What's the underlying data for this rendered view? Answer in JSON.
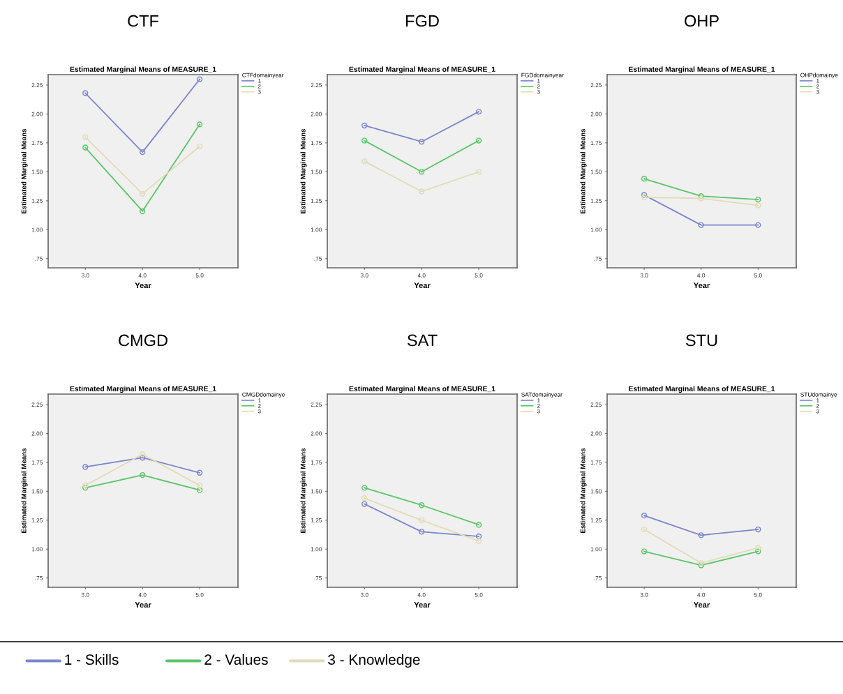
{
  "chart_data": [
    {
      "type": "line",
      "title": "CTF",
      "subtitle": "Estimated Marginal Means of MEASURE_1",
      "xlabel": "Year",
      "ylabel": "Estimated Marginal Means",
      "legend_title": "CTFdomainyear",
      "x": [
        3,
        4,
        5
      ],
      "xlim": [
        2.35,
        5.67
      ],
      "xticks": [
        {
          "value": 3,
          "label": "3.0"
        },
        {
          "value": 4,
          "label": "4.0"
        },
        {
          "value": 5,
          "label": "5.0"
        }
      ],
      "ylim": [
        0.67,
        2.34
      ],
      "yticks": [
        {
          "value": 0.75,
          "label": ".75"
        },
        {
          "value": 1,
          "label": "1.00"
        },
        {
          "value": 1.25,
          "label": "1.25"
        },
        {
          "value": 1.5,
          "label": "1.50"
        },
        {
          "value": 1.75,
          "label": "1.75"
        },
        {
          "value": 2,
          "label": "2.00"
        },
        {
          "value": 2.25,
          "label": "2.25"
        }
      ],
      "marker": "circle",
      "legend": "top right",
      "grid": false,
      "series": [
        {
          "name": "1",
          "color": "#7b86cc",
          "values": [
            2.18,
            1.67,
            2.3
          ]
        },
        {
          "name": "2",
          "color": "#5cc46a",
          "values": [
            1.71,
            1.16,
            1.91
          ]
        },
        {
          "name": "3",
          "color": "#e0dcb8",
          "values": [
            1.8,
            1.31,
            1.72
          ]
        }
      ]
    },
    {
      "type": "line",
      "title": "FGD",
      "subtitle": "Estimated Marginal Means of MEASURE_1",
      "xlabel": "Year",
      "ylabel": "Estimated Marginal Means",
      "legend_title": "FGDdomainyear",
      "x": [
        3,
        4,
        5
      ],
      "xlim": [
        2.35,
        5.67
      ],
      "xticks": [
        {
          "value": 3,
          "label": "3.0"
        },
        {
          "value": 4,
          "label": "4.0"
        },
        {
          "value": 5,
          "label": "5.0"
        }
      ],
      "ylim": [
        0.67,
        2.34
      ],
      "yticks": [
        {
          "value": 0.75,
          "label": ".75"
        },
        {
          "value": 1,
          "label": "1.00"
        },
        {
          "value": 1.25,
          "label": "1.25"
        },
        {
          "value": 1.5,
          "label": "1.50"
        },
        {
          "value": 1.75,
          "label": "1.75"
        },
        {
          "value": 2,
          "label": "2.00"
        },
        {
          "value": 2.25,
          "label": "2.25"
        }
      ],
      "marker": "circle",
      "legend": "top right",
      "grid": false,
      "series": [
        {
          "name": "1",
          "color": "#7b86cc",
          "values": [
            1.9,
            1.76,
            2.02
          ]
        },
        {
          "name": "2",
          "color": "#5cc46a",
          "values": [
            1.77,
            1.5,
            1.77
          ]
        },
        {
          "name": "3",
          "color": "#e0dcb8",
          "values": [
            1.59,
            1.33,
            1.5
          ]
        }
      ]
    },
    {
      "type": "line",
      "title": "OHP",
      "subtitle": "Estimated Marginal Means of MEASURE_1",
      "xlabel": "Year",
      "ylabel": "Estimated Marginal Means",
      "legend_title": "OHPdomainye",
      "x": [
        3,
        4,
        5
      ],
      "xlim": [
        2.35,
        5.67
      ],
      "xticks": [
        {
          "value": 3,
          "label": "3.0"
        },
        {
          "value": 4,
          "label": "4.0"
        },
        {
          "value": 5,
          "label": "5.0"
        }
      ],
      "ylim": [
        0.67,
        2.34
      ],
      "yticks": [
        {
          "value": 0.75,
          "label": ".75"
        },
        {
          "value": 1,
          "label": "1.00"
        },
        {
          "value": 1.25,
          "label": "1.25"
        },
        {
          "value": 1.5,
          "label": "1.50"
        },
        {
          "value": 1.75,
          "label": "1.75"
        },
        {
          "value": 2,
          "label": "2.00"
        },
        {
          "value": 2.25,
          "label": "2.25"
        }
      ],
      "marker": "circle",
      "legend": "top right",
      "grid": false,
      "series": [
        {
          "name": "1",
          "color": "#7b86cc",
          "values": [
            1.3,
            1.04,
            1.04
          ]
        },
        {
          "name": "2",
          "color": "#5cc46a",
          "values": [
            1.44,
            1.29,
            1.26
          ]
        },
        {
          "name": "3",
          "color": "#e0dcb8",
          "values": [
            1.28,
            1.27,
            1.21
          ]
        }
      ]
    },
    {
      "type": "line",
      "title": "CMGD",
      "subtitle": "Estimated Marginal Means of MEASURE_1",
      "xlabel": "Year",
      "ylabel": "Estimated Marginal Means",
      "legend_title": "CMGDdomainye",
      "x": [
        3,
        4,
        5
      ],
      "xlim": [
        2.35,
        5.67
      ],
      "xticks": [
        {
          "value": 3,
          "label": "3.0"
        },
        {
          "value": 4,
          "label": "4.0"
        },
        {
          "value": 5,
          "label": "5.0"
        }
      ],
      "ylim": [
        0.67,
        2.34
      ],
      "yticks": [
        {
          "value": 0.75,
          "label": ".75"
        },
        {
          "value": 1,
          "label": "1.00"
        },
        {
          "value": 1.25,
          "label": "1.25"
        },
        {
          "value": 1.5,
          "label": "1.50"
        },
        {
          "value": 1.75,
          "label": "1.75"
        },
        {
          "value": 2,
          "label": "2.00"
        },
        {
          "value": 2.25,
          "label": "2.25"
        }
      ],
      "marker": "circle",
      "legend": "top right",
      "grid": false,
      "series": [
        {
          "name": "1",
          "color": "#7b86cc",
          "values": [
            1.71,
            1.79,
            1.66
          ]
        },
        {
          "name": "2",
          "color": "#5cc46a",
          "values": [
            1.53,
            1.64,
            1.51
          ]
        },
        {
          "name": "3",
          "color": "#e0dcb8",
          "values": [
            1.55,
            1.82,
            1.55
          ]
        }
      ]
    },
    {
      "type": "line",
      "title": "SAT",
      "subtitle": "Estimated Marginal Means of MEASURE_1",
      "xlabel": "Year",
      "ylabel": "Estimated Marginal Means",
      "legend_title": "SATdomainyear",
      "x": [
        3,
        4,
        5
      ],
      "xlim": [
        2.35,
        5.67
      ],
      "xticks": [
        {
          "value": 3,
          "label": "3.0"
        },
        {
          "value": 4,
          "label": "4.0"
        },
        {
          "value": 5,
          "label": "5.0"
        }
      ],
      "ylim": [
        0.67,
        2.34
      ],
      "yticks": [
        {
          "value": 0.75,
          "label": ".75"
        },
        {
          "value": 1,
          "label": "1.00"
        },
        {
          "value": 1.25,
          "label": "1.25"
        },
        {
          "value": 1.5,
          "label": "1.50"
        },
        {
          "value": 1.75,
          "label": "1.75"
        },
        {
          "value": 2,
          "label": "2.00"
        },
        {
          "value": 2.25,
          "label": "2.25"
        }
      ],
      "marker": "circle",
      "legend": "top right",
      "grid": false,
      "series": [
        {
          "name": "1",
          "color": "#7b86cc",
          "values": [
            1.39,
            1.15,
            1.11
          ]
        },
        {
          "name": "2",
          "color": "#5cc46a",
          "values": [
            1.53,
            1.38,
            1.21
          ]
        },
        {
          "name": "3",
          "color": "#e0dcb8",
          "values": [
            1.44,
            1.25,
            1.07
          ]
        }
      ]
    },
    {
      "type": "line",
      "title": "STU",
      "subtitle": "Estimated Marginal Means of MEASURE_1",
      "xlabel": "Year",
      "ylabel": "Estimated Marginal Means",
      "legend_title": "STUdomainye",
      "x": [
        3,
        4,
        5
      ],
      "xlim": [
        2.35,
        5.67
      ],
      "xticks": [
        {
          "value": 3,
          "label": "3.0"
        },
        {
          "value": 4,
          "label": "4.0"
        },
        {
          "value": 5,
          "label": "5.0"
        }
      ],
      "ylim": [
        0.67,
        2.34
      ],
      "yticks": [
        {
          "value": 0.75,
          "label": ".75"
        },
        {
          "value": 1,
          "label": "1.00"
        },
        {
          "value": 1.25,
          "label": "1.25"
        },
        {
          "value": 1.5,
          "label": "1.50"
        },
        {
          "value": 1.75,
          "label": "1.75"
        },
        {
          "value": 2,
          "label": "2.00"
        },
        {
          "value": 2.25,
          "label": "2.25"
        }
      ],
      "marker": "circle",
      "legend": "top right",
      "grid": false,
      "series": [
        {
          "name": "1",
          "color": "#7b86cc",
          "values": [
            1.29,
            1.12,
            1.17
          ]
        },
        {
          "name": "2",
          "color": "#5cc46a",
          "values": [
            0.98,
            0.86,
            0.98
          ]
        },
        {
          "name": "3",
          "color": "#e0dcb8",
          "values": [
            1.17,
            0.88,
            1.01
          ]
        }
      ]
    },
    {
      "type": "other",
      "annotations": [
        "1 - Skills",
        "2 - Values",
        "3 - Knowledge"
      ],
      "colors": [
        "#7b86cc",
        "#5cc46a",
        "#e0dcb8"
      ]
    }
  ]
}
